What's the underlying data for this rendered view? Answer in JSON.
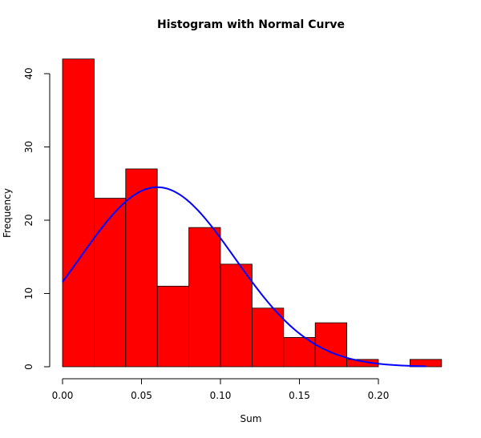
{
  "chart_data": {
    "type": "bar",
    "title": "Histogram with Normal Curve",
    "xlabel": "Sum",
    "ylabel": "Frequency",
    "bins": [
      {
        "x0": 0.0,
        "x1": 0.02,
        "count": 42
      },
      {
        "x0": 0.02,
        "x1": 0.04,
        "count": 23
      },
      {
        "x0": 0.04,
        "x1": 0.06,
        "count": 27
      },
      {
        "x0": 0.06,
        "x1": 0.08,
        "count": 11
      },
      {
        "x0": 0.08,
        "x1": 0.1,
        "count": 19
      },
      {
        "x0": 0.1,
        "x1": 0.12,
        "count": 14
      },
      {
        "x0": 0.12,
        "x1": 0.14,
        "count": 8
      },
      {
        "x0": 0.14,
        "x1": 0.16,
        "count": 4
      },
      {
        "x0": 0.16,
        "x1": 0.18,
        "count": 6
      },
      {
        "x0": 0.18,
        "x1": 0.2,
        "count": 1
      },
      {
        "x0": 0.2,
        "x1": 0.22,
        "count": 0
      },
      {
        "x0": 0.22,
        "x1": 0.24,
        "count": 1
      }
    ],
    "xlim": [
      0,
      0.24
    ],
    "ylim": [
      0,
      42
    ],
    "x_ticks": [
      0.0,
      0.05,
      0.1,
      0.15,
      0.2
    ],
    "x_tick_labels": [
      "0.00",
      "0.05",
      "0.10",
      "0.15",
      "0.20"
    ],
    "y_ticks": [
      0,
      10,
      20,
      30,
      40
    ],
    "y_tick_labels": [
      "0",
      "10",
      "20",
      "30",
      "40"
    ],
    "curve": {
      "mean": 0.06,
      "sd": 0.049,
      "scale": 3.01,
      "x_from": 0.0,
      "x_to": 0.23
    },
    "bar_color": "#ff0000",
    "curve_color": "#0000ff",
    "grid": false
  }
}
